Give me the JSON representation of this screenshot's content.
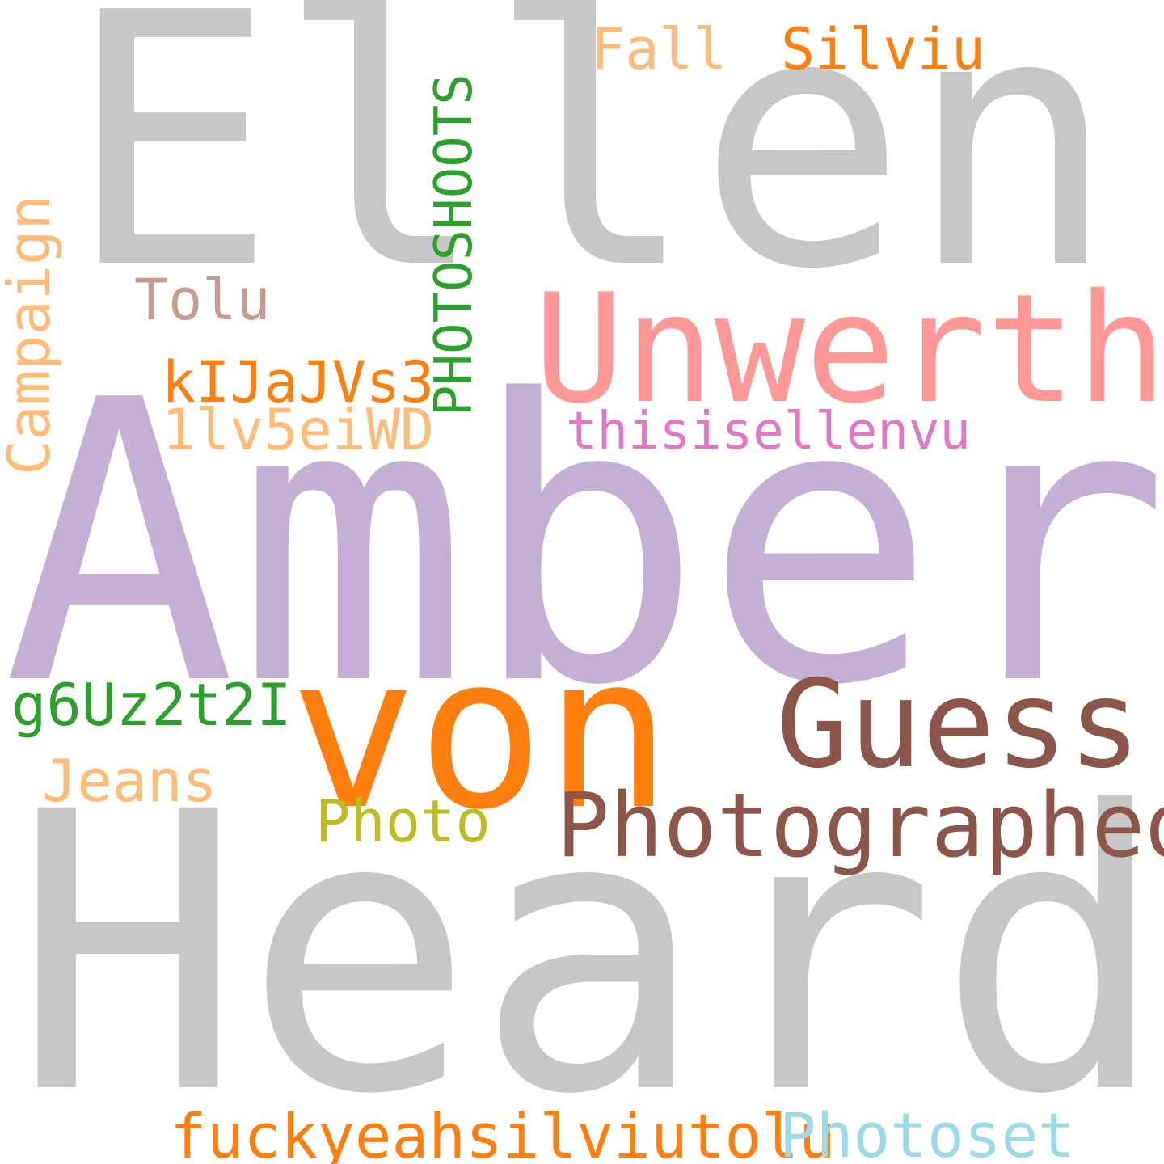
{
  "words": {
    "ellen": {
      "text": "Ellen",
      "color": "#c7c7c7"
    },
    "amber": {
      "text": "Amber",
      "color": "#c5b0d5"
    },
    "heard": {
      "text": "Heard",
      "color": "#c7c7c7"
    },
    "von": {
      "text": "von",
      "color": "#ff7f0e"
    },
    "unwerth": {
      "text": "Unwerth",
      "color": "#ff9896"
    },
    "guess": {
      "text": "Guess",
      "color": "#8c564b"
    },
    "photographed": {
      "text": "Photographed",
      "color": "#8c564b"
    },
    "photoshoots": {
      "text": "PHOTOSHOOTS",
      "color": "#2ca02c",
      "orientation": "vertical"
    },
    "campaign": {
      "text": "Campaign",
      "color": "#ffbb78",
      "orientation": "vertical"
    },
    "fall": {
      "text": "Fall",
      "color": "#ffbb78"
    },
    "silviu": {
      "text": "Silviu",
      "color": "#ff7f0e"
    },
    "tolu": {
      "text": "Tolu",
      "color": "#c49c94"
    },
    "kijajvs3": {
      "text": "kIJaJVs3",
      "color": "#ff7f0e"
    },
    "lv5eiwd": {
      "text": "1lv5eiWD",
      "color": "#ffbb78"
    },
    "thisisellenvu": {
      "text": "thisisellenvu",
      "color": "#e377c2"
    },
    "g6uz2t2i": {
      "text": "g6Uz2t2I",
      "color": "#2ca02c"
    },
    "jeans": {
      "text": "Jeans",
      "color": "#ffbb78"
    },
    "photo": {
      "text": "Photo",
      "color": "#bcbd22"
    },
    "fuckyeah": {
      "text": "fuckyeahsilviutolu",
      "color": "#ff7f0e"
    },
    "photoset": {
      "text": "Photoset",
      "color": "#9edae5"
    }
  }
}
